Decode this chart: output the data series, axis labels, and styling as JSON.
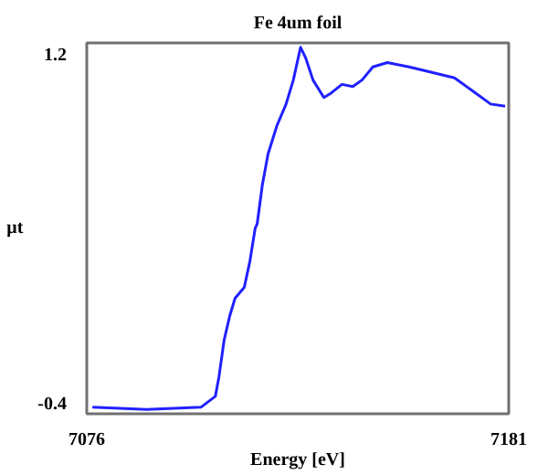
{
  "chart_data": {
    "type": "line",
    "title": "Fe 4um foil",
    "xlabel": "Energy [eV]",
    "ylabel": "μt",
    "xlim": [
      7076,
      7181
    ],
    "ylim": [
      -0.45,
      1.25
    ],
    "xticks": [
      7076,
      7181
    ],
    "yticks": [
      -0.4,
      1.2
    ],
    "grid": false,
    "series": [
      {
        "color": "#2020ff",
        "x": [
          7077.4,
          7090.9,
          7104.4,
          7108.0,
          7108.9,
          7110.2,
          7111.6,
          7112.9,
          7115.2,
          7116.6,
          7117.9,
          7118.4,
          7119.7,
          7121.1,
          7123.3,
          7125.6,
          7127.4,
          7129.2,
          7130.5,
          7132.3,
          7135.0,
          7136.8,
          7139.5,
          7142.2,
          7144.5,
          7147.2,
          7150.8,
          7156.2,
          7160.7,
          7167.5,
          7172.0,
          7176.5,
          7180.1
        ],
        "values": [
          -0.42,
          -0.43,
          -0.42,
          -0.37,
          -0.28,
          -0.11,
          0.0,
          0.08,
          0.13,
          0.25,
          0.4,
          0.42,
          0.6,
          0.74,
          0.87,
          0.97,
          1.08,
          1.23,
          1.18,
          1.08,
          1.0,
          1.02,
          1.06,
          1.05,
          1.08,
          1.14,
          1.16,
          1.14,
          1.12,
          1.09,
          1.03,
          0.97,
          0.96
        ]
      }
    ]
  }
}
